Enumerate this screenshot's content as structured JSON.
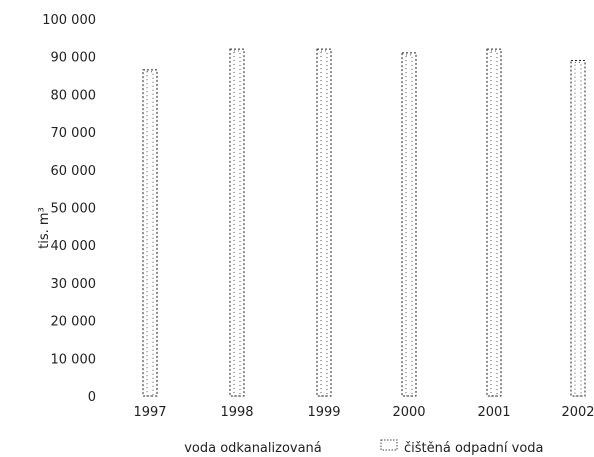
{
  "chart_data": {
    "type": "bar",
    "categories": [
      "1997",
      "1998",
      "1999",
      "2000",
      "2001",
      "2002"
    ],
    "series": [
      {
        "name": "voda odkanalizovaná",
        "values": [
          86500,
          92000,
          92000,
          91000,
          92000,
          89000
        ]
      },
      {
        "name": "čištěná odpadní voda",
        "values": [
          86000,
          91500,
          91500,
          90500,
          91500,
          88500
        ]
      }
    ],
    "yticks": [
      "0",
      "10 000",
      "20 000",
      "30 000",
      "40 000",
      "50 000",
      "60 000",
      "70 000",
      "80 000",
      "90 000",
      "100 000"
    ],
    "ylabel": "tis. m³",
    "ylim": [
      0,
      100000
    ],
    "grid": false,
    "legend": "bottom",
    "colors": {
      "series1": "#222222",
      "series2": "#555555"
    }
  }
}
